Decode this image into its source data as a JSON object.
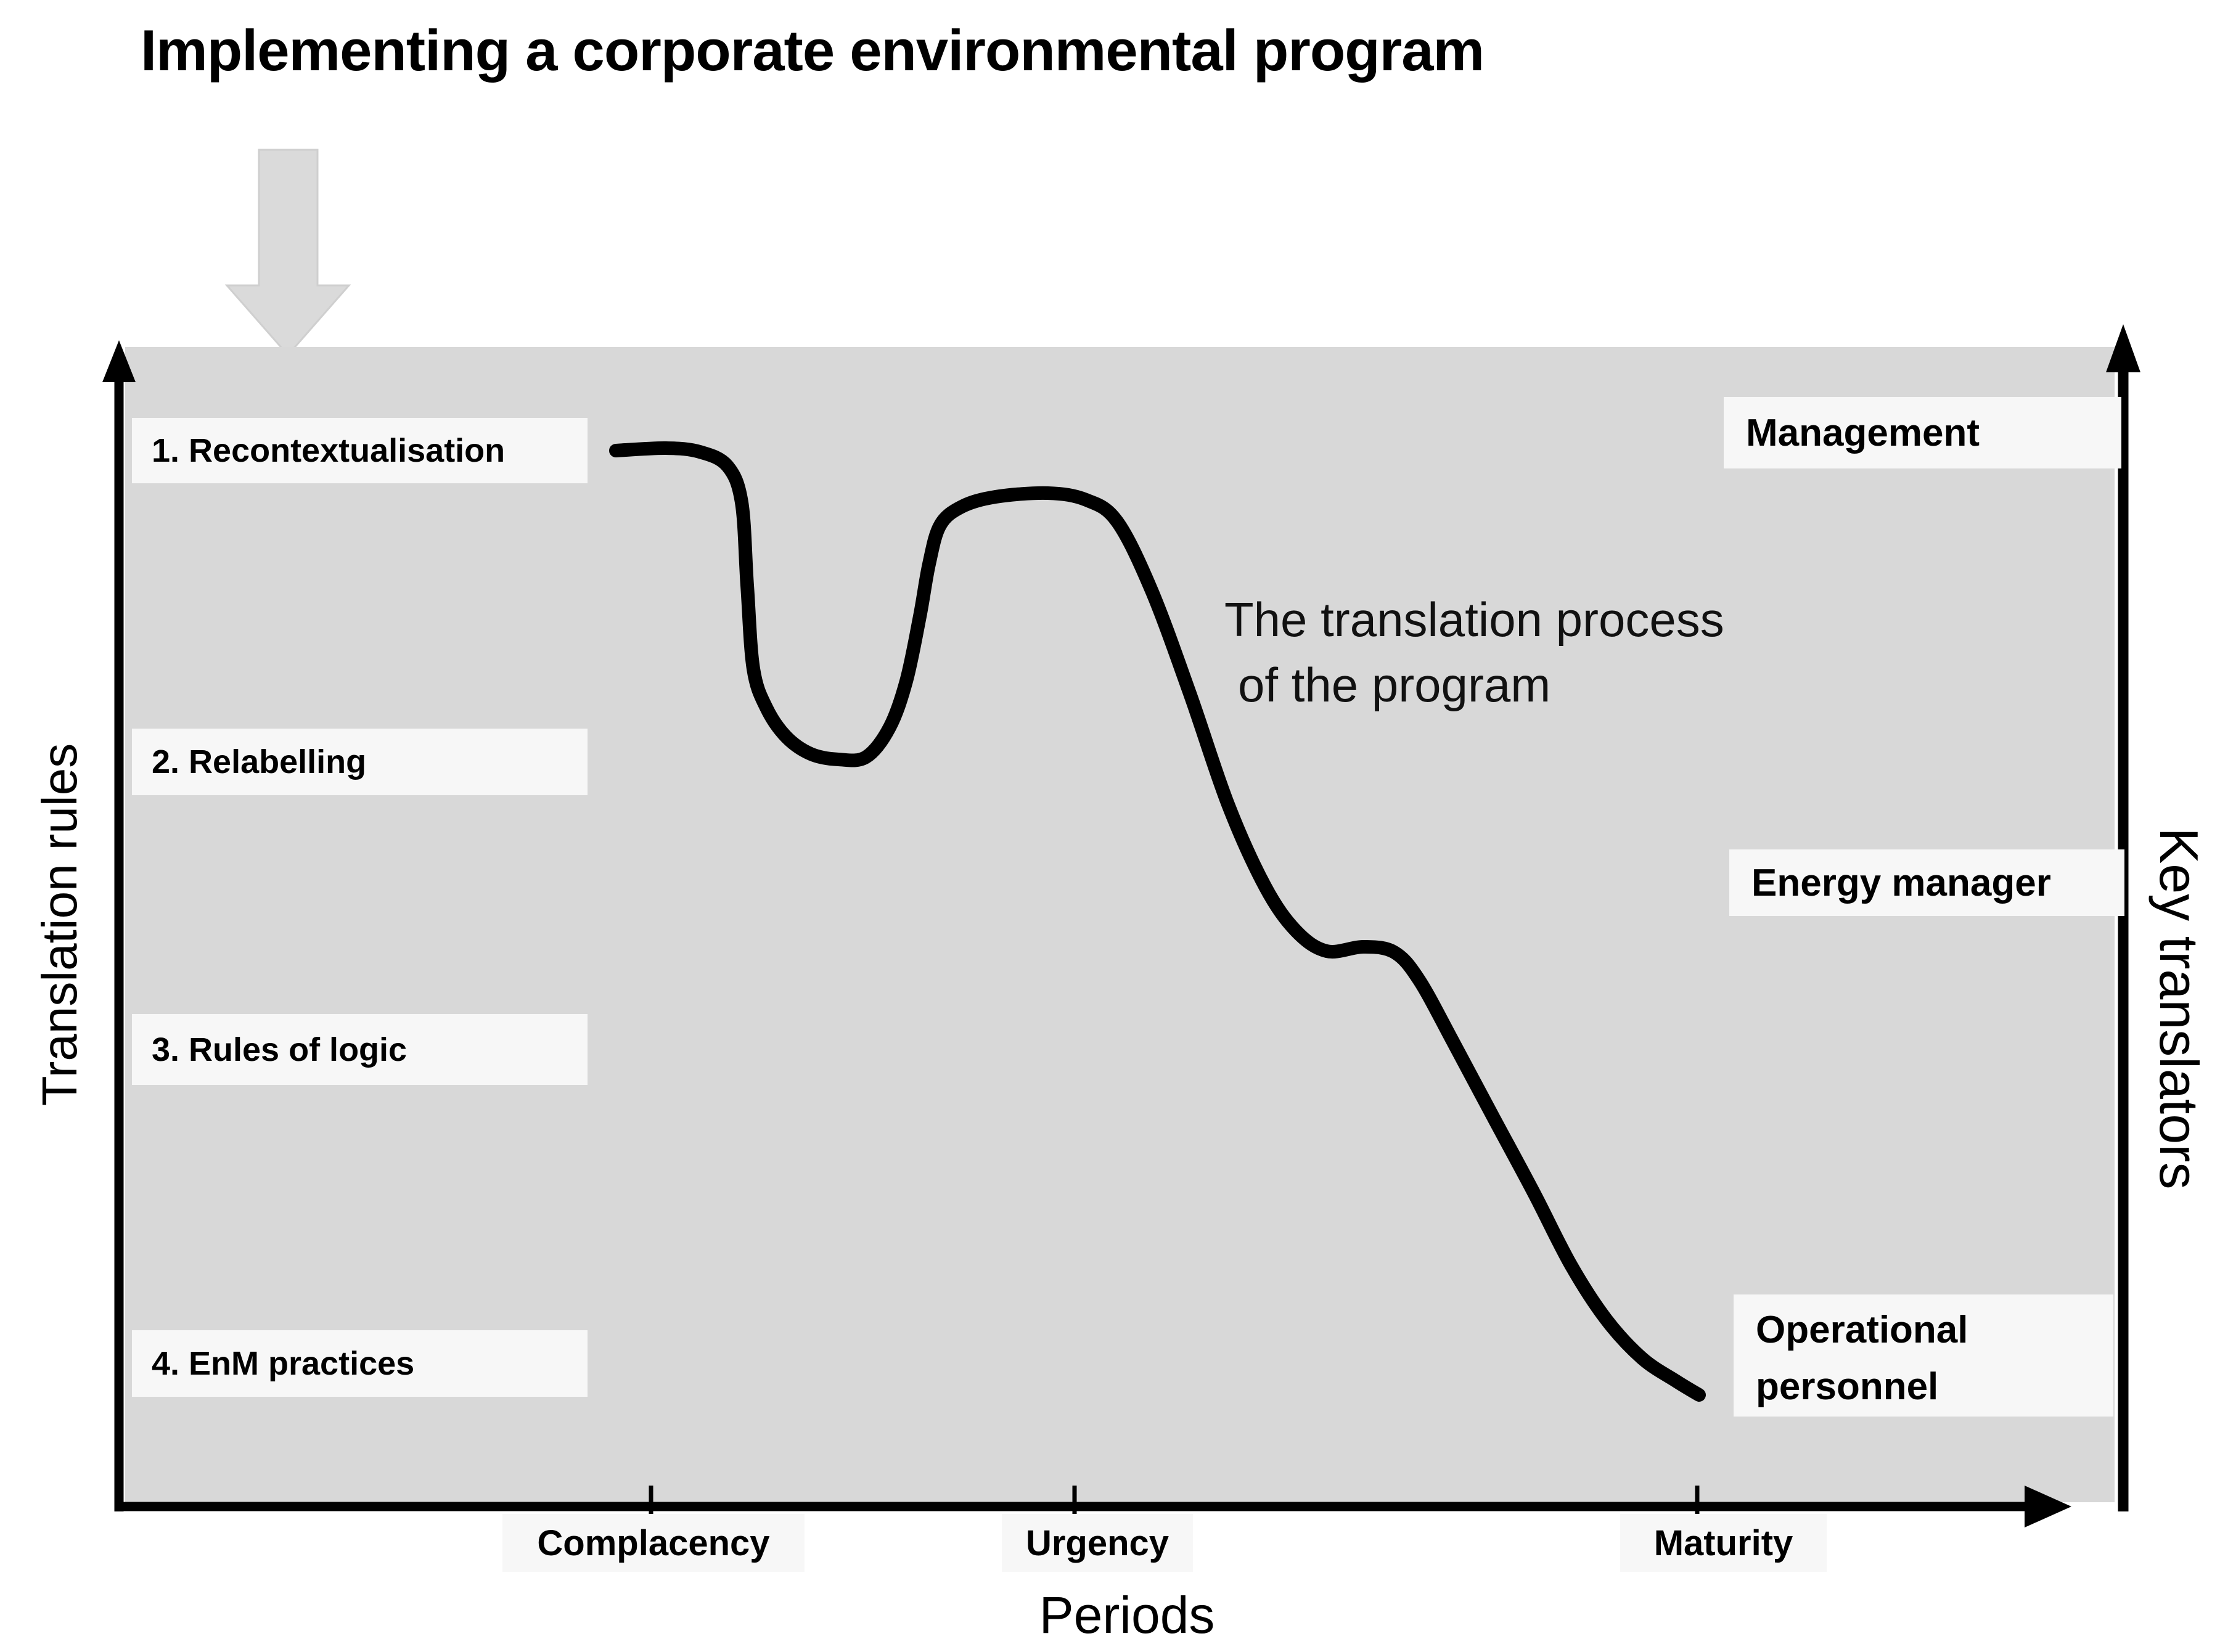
{
  "title": "Implementing a corporate environmental program",
  "plot": {
    "left_axis": {
      "label": "Translation rules",
      "items": [
        "1. Recontextualisation",
        "2. Relabelling",
        "3. Rules of logic",
        "4. EnM practices"
      ]
    },
    "right_axis": {
      "label": "Key translators",
      "items": [
        "Management",
        "Energy manager",
        "Operational personnel"
      ]
    },
    "x_axis": {
      "label": "Periods",
      "ticks": [
        {
          "label": "Complacency"
        },
        {
          "label": "Urgency"
        },
        {
          "label": "Maturity"
        }
      ]
    },
    "annotation": {
      "line1": "The translation process",
      "line2": "of the program"
    }
  },
  "icons": {
    "big_arrow": "down-arrow"
  },
  "colors": {
    "page_bg": "#ffffff",
    "plot_bg": "#d8d8d8",
    "label_box_bg": "#f7f7f7",
    "ink": "#000000",
    "big_arrow_fill": "#dadada",
    "big_arrow_edge": "#cfcfcf"
  },
  "curve": {
    "stroke_width": 22,
    "points": [
      [
        999,
        731
      ],
      [
        1080,
        727
      ],
      [
        1135,
        733
      ],
      [
        1180,
        756
      ],
      [
        1203,
        815
      ],
      [
        1212,
        950
      ],
      [
        1222,
        1085
      ],
      [
        1243,
        1148
      ],
      [
        1275,
        1195
      ],
      [
        1315,
        1223
      ],
      [
        1360,
        1232
      ],
      [
        1405,
        1228
      ],
      [
        1443,
        1180
      ],
      [
        1470,
        1105
      ],
      [
        1492,
        1000
      ],
      [
        1507,
        915
      ],
      [
        1525,
        852
      ],
      [
        1560,
        822
      ],
      [
        1615,
        806
      ],
      [
        1700,
        800
      ],
      [
        1762,
        811
      ],
      [
        1812,
        846
      ],
      [
        1868,
        958
      ],
      [
        1930,
        1125
      ],
      [
        1992,
        1305
      ],
      [
        2052,
        1438
      ],
      [
        2102,
        1510
      ],
      [
        2152,
        1543
      ],
      [
        2212,
        1536
      ],
      [
        2262,
        1545
      ],
      [
        2302,
        1590
      ],
      [
        2358,
        1692
      ],
      [
        2422,
        1812
      ],
      [
        2488,
        1935
      ],
      [
        2548,
        2052
      ],
      [
        2605,
        2140
      ],
      [
        2663,
        2203
      ],
      [
        2718,
        2240
      ],
      [
        2756,
        2263
      ]
    ]
  },
  "chart_data": {
    "type": "line",
    "title": "Implementing a corporate environmental program",
    "xlabel": "Periods",
    "x_categories": [
      "Complacency",
      "Urgency",
      "Maturity"
    ],
    "ylabel_left": "Translation rules",
    "ylabel_right": "Key translators",
    "y_categories_left_top_to_bottom": [
      "1. Recontextualisation",
      "2. Relabelling",
      "3. Rules of logic",
      "4. EnM practices"
    ],
    "y_categories_right_top_to_bottom": [
      "Management",
      "Energy manager",
      "Operational personnel"
    ],
    "series": [
      {
        "name": "The translation process of the program",
        "description": "Qualitative freehand curve: starts high near rule 1 (Recontextualisation, Management level) during Complacency, dips sharply, recovers to a plateau near rule 1 around Urgency, then descends past rules 2-3 (Energy manager level) with a small intermediate ledge, and flattens near rule 4 (EnM practices) at Maturity, ending beside Operational personnel."
      }
    ],
    "legend": false,
    "grid": false,
    "axes_quantitative": false
  }
}
